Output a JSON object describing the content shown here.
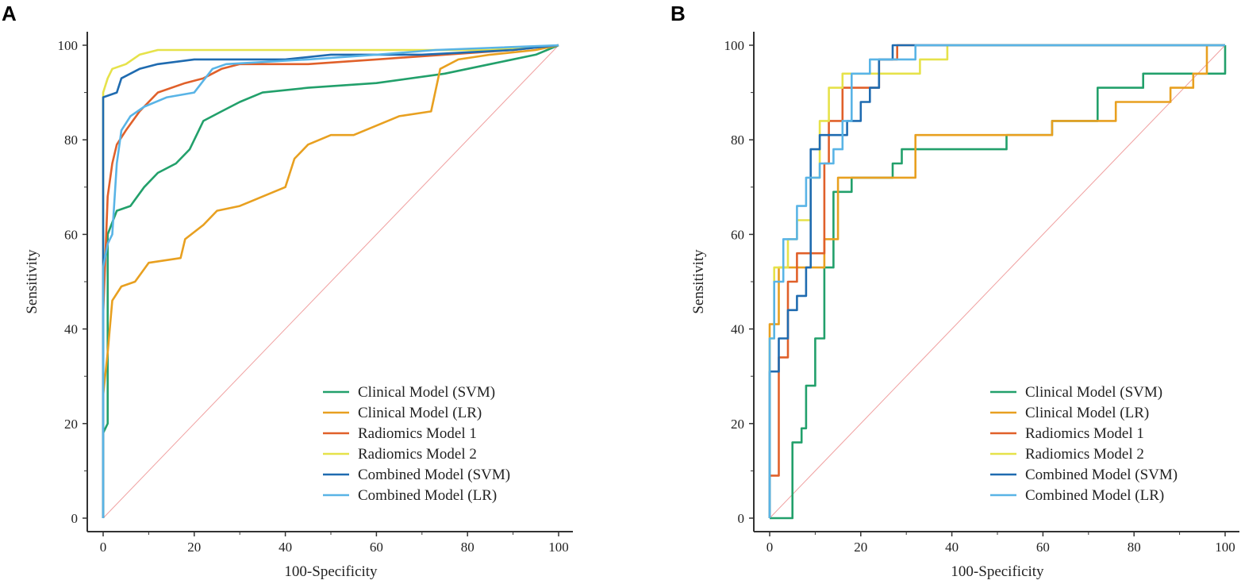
{
  "chart_data": [
    {
      "panel": "A",
      "type": "line",
      "title": "",
      "xlabel": "100-Specificity",
      "ylabel": "Sensitivity",
      "xlim": [
        0,
        100
      ],
      "ylim": [
        0,
        100
      ],
      "xticks": [
        "0",
        "20",
        "40",
        "60",
        "80",
        "100"
      ],
      "yticks": [
        "0",
        "20",
        "40",
        "60",
        "80",
        "100"
      ],
      "grid": false,
      "legend_position": "bottom-right",
      "reference_line": {
        "from": [
          0,
          0
        ],
        "to": [
          100,
          100
        ],
        "color": "#f0a0a0"
      },
      "series": [
        {
          "name": "Clinical Model (SVM)",
          "color": "#22a06b",
          "points": [
            [
              0,
              0
            ],
            [
              0,
              18
            ],
            [
              1,
              20
            ],
            [
              1,
              60
            ],
            [
              3,
              65
            ],
            [
              6,
              66
            ],
            [
              9,
              70
            ],
            [
              12,
              73
            ],
            [
              16,
              75
            ],
            [
              19,
              78
            ],
            [
              22,
              84
            ],
            [
              26,
              86
            ],
            [
              30,
              88
            ],
            [
              35,
              90
            ],
            [
              45,
              91
            ],
            [
              60,
              92
            ],
            [
              75,
              94
            ],
            [
              85,
              96
            ],
            [
              95,
              98
            ],
            [
              100,
              100
            ]
          ]
        },
        {
          "name": "Clinical Model (LR)",
          "color": "#e8a020",
          "points": [
            [
              0,
              0
            ],
            [
              0,
              26
            ],
            [
              1,
              35
            ],
            [
              2,
              46
            ],
            [
              4,
              49
            ],
            [
              7,
              50
            ],
            [
              10,
              54
            ],
            [
              17,
              55
            ],
            [
              18,
              59
            ],
            [
              22,
              62
            ],
            [
              25,
              65
            ],
            [
              30,
              66
            ],
            [
              35,
              68
            ],
            [
              40,
              70
            ],
            [
              42,
              76
            ],
            [
              45,
              79
            ],
            [
              50,
              81
            ],
            [
              55,
              81
            ],
            [
              60,
              83
            ],
            [
              65,
              85
            ],
            [
              72,
              86
            ],
            [
              74,
              95
            ],
            [
              78,
              97
            ],
            [
              85,
              98
            ],
            [
              95,
              99
            ],
            [
              100,
              100
            ]
          ]
        },
        {
          "name": "Radiomics Model 1",
          "color": "#e0602a",
          "points": [
            [
              0,
              0
            ],
            [
              0,
              43
            ],
            [
              1,
              68
            ],
            [
              2,
              75
            ],
            [
              3,
              79
            ],
            [
              5,
              82
            ],
            [
              8,
              86
            ],
            [
              12,
              90
            ],
            [
              18,
              92
            ],
            [
              22,
              93
            ],
            [
              26,
              95
            ],
            [
              30,
              96
            ],
            [
              45,
              96
            ],
            [
              60,
              97
            ],
            [
              75,
              98
            ],
            [
              90,
              99
            ],
            [
              100,
              100
            ]
          ]
        },
        {
          "name": "Radiomics Model 2",
          "color": "#e6e24a",
          "points": [
            [
              0,
              0
            ],
            [
              0,
              90
            ],
            [
              1,
              93
            ],
            [
              2,
              95
            ],
            [
              5,
              96
            ],
            [
              8,
              98
            ],
            [
              12,
              99
            ],
            [
              30,
              99
            ],
            [
              60,
              99
            ],
            [
              85,
              99
            ],
            [
              100,
              100
            ]
          ]
        },
        {
          "name": "Combined Model (SVM)",
          "color": "#1f6bb0",
          "points": [
            [
              0,
              0
            ],
            [
              0,
              89
            ],
            [
              3,
              90
            ],
            [
              4,
              93
            ],
            [
              8,
              95
            ],
            [
              12,
              96
            ],
            [
              20,
              97
            ],
            [
              40,
              97
            ],
            [
              50,
              98
            ],
            [
              70,
              98
            ],
            [
              90,
              99
            ],
            [
              100,
              100
            ]
          ]
        },
        {
          "name": "Combined Model (LR)",
          "color": "#59b4e6",
          "points": [
            [
              0,
              0
            ],
            [
              0,
              53
            ],
            [
              1,
              58
            ],
            [
              2,
              60
            ],
            [
              3,
              75
            ],
            [
              4,
              82
            ],
            [
              6,
              85
            ],
            [
              9,
              87
            ],
            [
              14,
              89
            ],
            [
              20,
              90
            ],
            [
              24,
              95
            ],
            [
              27,
              96
            ],
            [
              45,
              97
            ],
            [
              60,
              98
            ],
            [
              73,
              99
            ],
            [
              100,
              100
            ]
          ]
        }
      ]
    },
    {
      "panel": "B",
      "type": "line",
      "title": "",
      "xlabel": "100-Specificity",
      "ylabel": "Sensitivity",
      "xlim": [
        0,
        100
      ],
      "ylim": [
        0,
        100
      ],
      "xticks": [
        "0",
        "20",
        "40",
        "60",
        "80",
        "100"
      ],
      "yticks": [
        "0",
        "20",
        "40",
        "60",
        "80",
        "100"
      ],
      "grid": false,
      "legend_position": "bottom-right",
      "reference_line": {
        "from": [
          0,
          0
        ],
        "to": [
          100,
          100
        ],
        "color": "#f0a0a0"
      },
      "series": [
        {
          "name": "Clinical Model (SVM)",
          "color": "#22a06b",
          "points": [
            [
              0,
              0
            ],
            [
              5,
              0
            ],
            [
              5,
              16
            ],
            [
              7,
              16
            ],
            [
              7,
              19
            ],
            [
              8,
              19
            ],
            [
              8,
              28
            ],
            [
              10,
              28
            ],
            [
              10,
              38
            ],
            [
              12,
              38
            ],
            [
              12,
              53
            ],
            [
              14,
              53
            ],
            [
              14,
              69
            ],
            [
              18,
              69
            ],
            [
              18,
              72
            ],
            [
              27,
              72
            ],
            [
              27,
              75
            ],
            [
              29,
              75
            ],
            [
              29,
              78
            ],
            [
              52,
              78
            ],
            [
              52,
              81
            ],
            [
              62,
              81
            ],
            [
              62,
              84
            ],
            [
              72,
              84
            ],
            [
              72,
              91
            ],
            [
              82,
              91
            ],
            [
              82,
              94
            ],
            [
              100,
              94
            ],
            [
              100,
              100
            ]
          ]
        },
        {
          "name": "Clinical Model (LR)",
          "color": "#e8a020",
          "points": [
            [
              0,
              0
            ],
            [
              0,
              41
            ],
            [
              2,
              41
            ],
            [
              2,
              53
            ],
            [
              12,
              53
            ],
            [
              12,
              59
            ],
            [
              15,
              59
            ],
            [
              15,
              72
            ],
            [
              32,
              72
            ],
            [
              32,
              81
            ],
            [
              62,
              81
            ],
            [
              62,
              84
            ],
            [
              76,
              84
            ],
            [
              76,
              88
            ],
            [
              88,
              88
            ],
            [
              88,
              91
            ],
            [
              93,
              91
            ],
            [
              93,
              94
            ],
            [
              96,
              94
            ],
            [
              96,
              100
            ],
            [
              100,
              100
            ]
          ]
        },
        {
          "name": "Radiomics Model 1",
          "color": "#e0602a",
          "points": [
            [
              0,
              0
            ],
            [
              0,
              9
            ],
            [
              2,
              9
            ],
            [
              2,
              34
            ],
            [
              4,
              34
            ],
            [
              4,
              50
            ],
            [
              6,
              50
            ],
            [
              6,
              56
            ],
            [
              12,
              56
            ],
            [
              12,
              75
            ],
            [
              13,
              75
            ],
            [
              13,
              84
            ],
            [
              16,
              84
            ],
            [
              16,
              91
            ],
            [
              24,
              91
            ],
            [
              24,
              97
            ],
            [
              28,
              97
            ],
            [
              28,
              100
            ],
            [
              100,
              100
            ]
          ]
        },
        {
          "name": "Radiomics Model 2",
          "color": "#e6e24a",
          "points": [
            [
              0,
              0
            ],
            [
              0,
              38
            ],
            [
              1,
              38
            ],
            [
              1,
              53
            ],
            [
              4,
              53
            ],
            [
              4,
              59
            ],
            [
              6,
              59
            ],
            [
              6,
              63
            ],
            [
              9,
              63
            ],
            [
              9,
              72
            ],
            [
              11,
              72
            ],
            [
              11,
              84
            ],
            [
              13,
              84
            ],
            [
              13,
              91
            ],
            [
              16,
              91
            ],
            [
              16,
              94
            ],
            [
              33,
              94
            ],
            [
              33,
              97
            ],
            [
              39,
              97
            ],
            [
              39,
              100
            ],
            [
              100,
              100
            ]
          ]
        },
        {
          "name": "Combined Model (SVM)",
          "color": "#1f6bb0",
          "points": [
            [
              0,
              0
            ],
            [
              0,
              31
            ],
            [
              2,
              31
            ],
            [
              2,
              38
            ],
            [
              4,
              38
            ],
            [
              4,
              44
            ],
            [
              6,
              44
            ],
            [
              6,
              47
            ],
            [
              8,
              47
            ],
            [
              8,
              53
            ],
            [
              9,
              53
            ],
            [
              9,
              78
            ],
            [
              11,
              78
            ],
            [
              11,
              81
            ],
            [
              17,
              81
            ],
            [
              17,
              84
            ],
            [
              20,
              84
            ],
            [
              20,
              88
            ],
            [
              22,
              88
            ],
            [
              22,
              91
            ],
            [
              24,
              91
            ],
            [
              24,
              97
            ],
            [
              27,
              97
            ],
            [
              27,
              100
            ],
            [
              100,
              100
            ]
          ]
        },
        {
          "name": "Combined Model (LR)",
          "color": "#59b4e6",
          "points": [
            [
              0,
              0
            ],
            [
              0,
              38
            ],
            [
              1,
              38
            ],
            [
              1,
              50
            ],
            [
              3,
              50
            ],
            [
              3,
              59
            ],
            [
              6,
              59
            ],
            [
              6,
              66
            ],
            [
              8,
              66
            ],
            [
              8,
              72
            ],
            [
              11,
              72
            ],
            [
              11,
              75
            ],
            [
              14,
              75
            ],
            [
              14,
              78
            ],
            [
              16,
              78
            ],
            [
              16,
              84
            ],
            [
              18,
              84
            ],
            [
              18,
              94
            ],
            [
              22,
              94
            ],
            [
              22,
              97
            ],
            [
              32,
              97
            ],
            [
              32,
              100
            ],
            [
              100,
              100
            ]
          ]
        }
      ]
    }
  ]
}
